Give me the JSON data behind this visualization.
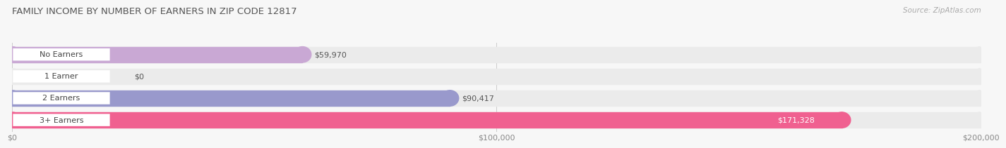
{
  "title": "FAMILY INCOME BY NUMBER OF EARNERS IN ZIP CODE 12817",
  "source": "Source: ZipAtlas.com",
  "categories": [
    "No Earners",
    "1 Earner",
    "2 Earners",
    "3+ Earners"
  ],
  "values": [
    59970,
    0,
    90417,
    171328
  ],
  "bar_colors": [
    "#c9a8d4",
    "#5dc8c8",
    "#9999cc",
    "#f06090"
  ],
  "bar_bg_color": "#ebebeb",
  "fig_bg_color": "#f7f7f7",
  "xlim": [
    0,
    200000
  ],
  "xticks": [
    0,
    100000,
    200000
  ],
  "xtick_labels": [
    "$0",
    "$100,000",
    "$200,000"
  ],
  "value_labels": [
    "$59,970",
    "$0",
    "$90,417",
    "$171,328"
  ],
  "value_inside": [
    false,
    false,
    false,
    true
  ],
  "title_fontsize": 9.5,
  "bar_label_fontsize": 8,
  "value_label_fontsize": 8,
  "tick_fontsize": 8,
  "source_fontsize": 7.5
}
